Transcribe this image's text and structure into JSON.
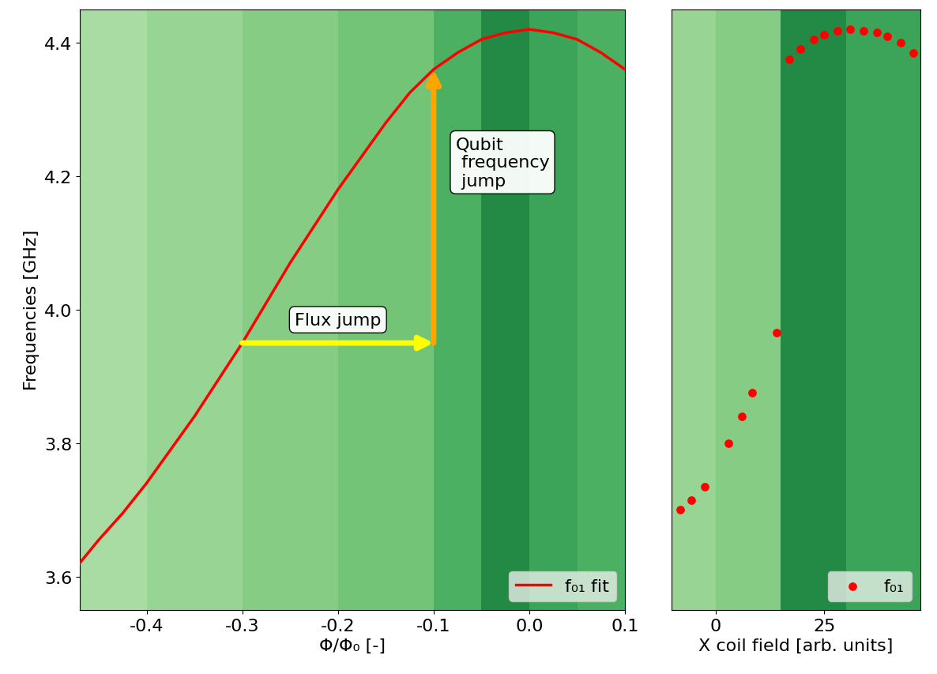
{
  "chart_data": [
    {
      "type": "line",
      "xlabel": "Φ/Φ₀ [-]",
      "ylabel": "Frequencies [GHz]",
      "xlim": [
        -0.47,
        0.1
      ],
      "xticks": [
        -0.4,
        -0.3,
        -0.2,
        -0.1,
        0.0,
        0.1
      ],
      "ylim": [
        3.55,
        4.45
      ],
      "yticks": [
        3.6,
        3.8,
        4.0,
        4.2,
        4.4
      ],
      "legend": "lower right",
      "background": {
        "x_edges": [
          -0.47,
          -0.4,
          -0.3,
          -0.2,
          -0.1,
          -0.05,
          0.0,
          0.05,
          0.1
        ],
        "values": [
          0.35,
          0.4,
          0.45,
          0.5,
          0.6,
          0.75,
          0.65,
          0.6
        ],
        "range": [
          0,
          1
        ]
      },
      "series": [
        {
          "name": "f₀₁ fit",
          "color": "#ff0000",
          "line_style": "solid",
          "x": [
            -0.47,
            -0.45,
            -0.425,
            -0.4,
            -0.375,
            -0.35,
            -0.325,
            -0.3,
            -0.275,
            -0.25,
            -0.225,
            -0.2,
            -0.175,
            -0.15,
            -0.125,
            -0.1,
            -0.075,
            -0.05,
            -0.025,
            0.0,
            0.025,
            0.05,
            0.075,
            0.1
          ],
          "values": [
            3.62,
            3.655,
            3.695,
            3.74,
            3.79,
            3.84,
            3.895,
            3.95,
            4.01,
            4.07,
            4.125,
            4.18,
            4.23,
            4.28,
            4.325,
            4.36,
            4.385,
            4.405,
            4.415,
            4.42,
            4.415,
            4.405,
            4.385,
            4.36
          ]
        }
      ],
      "annotations": [
        {
          "text": "Flux jump",
          "from": [
            -0.3,
            3.95
          ],
          "to": [
            -0.1,
            3.95
          ],
          "color": "#ffff00"
        },
        {
          "text": "Qubit\n frequency\n jump",
          "from": [
            -0.1,
            3.95
          ],
          "to": [
            -0.1,
            4.36
          ],
          "color": "#ffa500"
        }
      ]
    },
    {
      "type": "scatter",
      "xlabel": "X coil field [arb. units]",
      "xlim": [
        -10,
        47
      ],
      "xticks": [
        0,
        25
      ],
      "ylim": [
        3.55,
        4.45
      ],
      "tick_labels": "x",
      "legend": "lower right",
      "background": {
        "x_edges": [
          -10,
          0,
          15,
          30,
          47
        ],
        "values": [
          0.4,
          0.45,
          0.75,
          0.65
        ],
        "range": [
          0,
          1
        ]
      },
      "series": [
        {
          "name": "f₀₁",
          "color": "#ff0000",
          "marker": "circle",
          "x": [
            -8,
            -5.5,
            -2.5,
            3,
            6,
            8.5,
            14,
            17,
            19.5,
            22.5,
            25,
            28,
            31,
            34,
            37,
            39.5,
            42.5,
            45.5
          ],
          "values": [
            3.7,
            3.715,
            3.735,
            3.8,
            3.84,
            3.875,
            3.965,
            4.375,
            4.39,
            4.405,
            4.412,
            4.418,
            4.42,
            4.418,
            4.415,
            4.41,
            4.4,
            4.385
          ]
        }
      ]
    }
  ]
}
